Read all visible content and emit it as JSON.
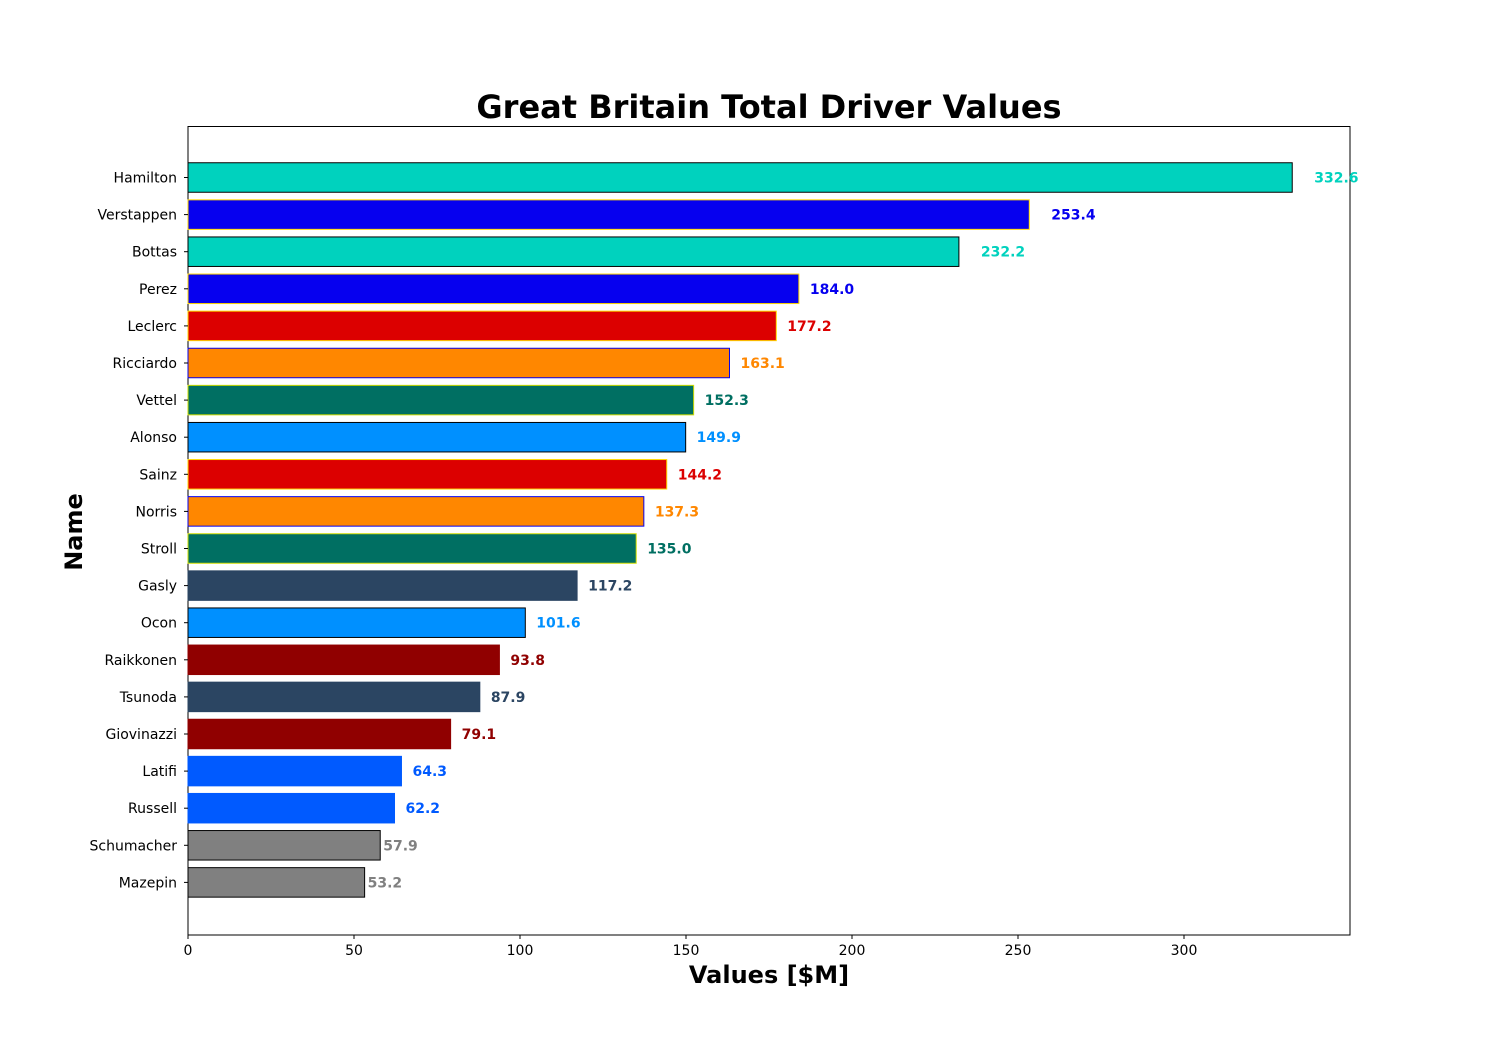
{
  "chart_data": {
    "type": "bar",
    "orientation": "horizontal",
    "title": "Great Britain Total Driver Values",
    "xlabel": "Values [$M]",
    "ylabel": "Name",
    "xlim": [
      0,
      350
    ],
    "x_ticks": [
      "0",
      "50",
      "100",
      "150",
      "200",
      "250",
      "300"
    ],
    "grid": false,
    "categories": [
      "Hamilton",
      "Verstappen",
      "Bottas",
      "Perez",
      "Leclerc",
      "Ricciardo",
      "Vettel",
      "Alonso",
      "Sainz",
      "Norris",
      "Stroll",
      "Gasly",
      "Ocon",
      "Raikkonen",
      "Tsunoda",
      "Giovinazzi",
      "Latifi",
      "Russell",
      "Schumacher",
      "Mazepin"
    ],
    "values": [
      332.6,
      253.4,
      232.2,
      184.0,
      177.2,
      163.1,
      152.3,
      149.9,
      144.2,
      137.3,
      135.0,
      117.2,
      101.6,
      93.8,
      87.9,
      79.1,
      64.3,
      62.2,
      57.9,
      53.2
    ],
    "value_labels": [
      "332.6",
      "253.4",
      "232.2",
      "184.0",
      "177.2",
      "163.1",
      "152.3",
      "149.9",
      "144.2",
      "137.3",
      "135.0",
      "117.2",
      "101.6",
      "93.8",
      "87.9",
      "79.1",
      "64.3",
      "62.2",
      "57.9",
      "53.2"
    ],
    "bar_colors": [
      "#00D2BE",
      "#0600EF",
      "#00D2BE",
      "#0600EF",
      "#DC0000",
      "#FF8700",
      "#006F62",
      "#0090FF",
      "#DC0000",
      "#FF8700",
      "#006F62",
      "#2B4562",
      "#0090FF",
      "#900000",
      "#2B4562",
      "#900000",
      "#005AFF",
      "#005AFF",
      "#808080",
      "#808080"
    ],
    "edge_colors": [
      "#000000",
      "#FFD700",
      "#000000",
      "#FFD700",
      "#FFD700",
      "#0600EF",
      "#CEDC00",
      "#000000",
      "#FFD700",
      "#0600EF",
      "#CEDC00",
      "#2B4562",
      "#000000",
      "#900000",
      "#2B4562",
      "#900000",
      "#005AFF",
      "#005AFF",
      "#000000",
      "#000000"
    ]
  }
}
